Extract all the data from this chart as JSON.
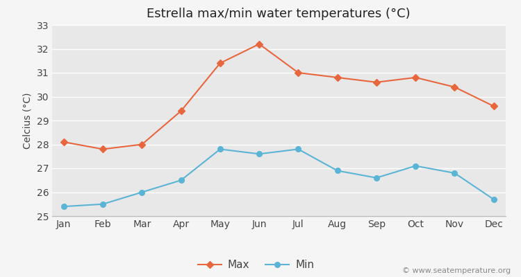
{
  "title": "Estrella max/min water temperatures (°C)",
  "ylabel": "Celcius (°C)",
  "months": [
    "Jan",
    "Feb",
    "Mar",
    "Apr",
    "May",
    "Jun",
    "Jul",
    "Aug",
    "Sep",
    "Oct",
    "Nov",
    "Dec"
  ],
  "max_temps": [
    28.1,
    27.8,
    28.0,
    29.4,
    31.4,
    32.2,
    31.0,
    30.8,
    30.6,
    30.8,
    30.4,
    29.6
  ],
  "min_temps": [
    25.4,
    25.5,
    26.0,
    26.5,
    27.8,
    27.6,
    27.8,
    26.9,
    26.6,
    27.1,
    26.8,
    25.7
  ],
  "max_color": "#e8663d",
  "min_color": "#5ab4d6",
  "fig_bg_color": "#f5f5f5",
  "plot_bg_color": "#e8e8e8",
  "grid_color": "#ffffff",
  "spine_color": "#bbbbbb",
  "ylim": [
    25,
    33
  ],
  "yticks": [
    25,
    26,
    27,
    28,
    29,
    30,
    31,
    32,
    33
  ],
  "legend_labels": [
    "Max",
    "Min"
  ],
  "watermark": "© www.seatemperature.org",
  "title_fontsize": 13,
  "label_fontsize": 10,
  "tick_fontsize": 10,
  "watermark_fontsize": 8
}
